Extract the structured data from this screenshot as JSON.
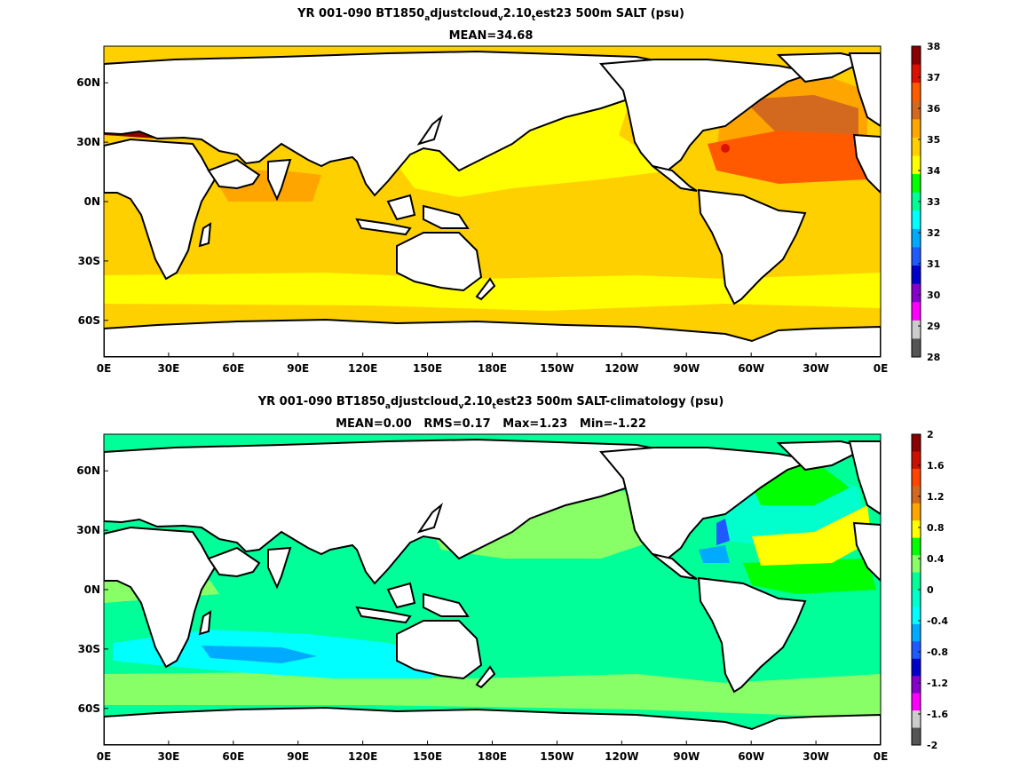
{
  "panels": [
    {
      "title_pre": "YR 001-090 BT1850",
      "title_sub1": "a",
      "title_mid1": "djustcloud",
      "title_sub2": "v",
      "title_mid2": "2.10",
      "title_sub3": "t",
      "title_post": "est23 500m SALT (psu)",
      "stats": "MEAN=34.68",
      "lon_ticks": [
        "0E",
        "30E",
        "60E",
        "90E",
        "120E",
        "150E",
        "180E",
        "150W",
        "120W",
        "90W",
        "60W",
        "30W",
        "0E"
      ],
      "lat_ticks": [
        "60N",
        "30N",
        "0N",
        "30S",
        "60S"
      ],
      "colorbar": {
        "labels": [
          "38",
          "37",
          "36",
          "35",
          "34",
          "33",
          "32",
          "31",
          "30",
          "29",
          "28"
        ],
        "colors": [
          "#8b0000",
          "#dd1100",
          "#ff5a00",
          "#d2691e",
          "#ffa500",
          "#ffd000",
          "#ffff00",
          "#00ff00",
          "#00ff99",
          "#00ffff",
          "#00aaff",
          "#1e5aff",
          "#0000cc",
          "#8800cc",
          "#ff00ff",
          "#cccccc",
          "#555555"
        ]
      },
      "colors": {
        "white": "#ffffff",
        "yellow": "#ffff00",
        "gold": "#ffd000",
        "orange": "#ffa500",
        "rust": "#d2691e",
        "redorange": "#ff5a00",
        "red": "#dd1100",
        "maroon": "#8b0000",
        "green": "#00ff00"
      }
    },
    {
      "title_pre": "YR 001-090 BT1850",
      "title_sub1": "a",
      "title_mid1": "djustcloud",
      "title_sub2": "v",
      "title_mid2": "2.10",
      "title_sub3": "t",
      "title_post": "est23 500m SALT-climatology (psu)",
      "stats": "MEAN=0.00   RMS=0.17   Max=1.23   Min=-1.22",
      "lon_ticks": [
        "0E",
        "30E",
        "60E",
        "90E",
        "120E",
        "150E",
        "180E",
        "150W",
        "120W",
        "90W",
        "60W",
        "30W",
        "0E"
      ],
      "lat_ticks": [
        "60N",
        "30N",
        "0N",
        "30S",
        "60S"
      ],
      "colorbar": {
        "labels": [
          "2",
          "1.6",
          "1.2",
          "0.8",
          "0.4",
          "0",
          "-0.4",
          "-0.8",
          "-1.2",
          "-1.6",
          "-2"
        ],
        "colors": [
          "#8b0000",
          "#cc1100",
          "#ff4400",
          "#d2691e",
          "#ffa500",
          "#ffff00",
          "#00ff00",
          "#88ff66",
          "#00ff99",
          "#00ffcc",
          "#00ffff",
          "#00aaff",
          "#1e5aff",
          "#0000cc",
          "#8800cc",
          "#ff00ff",
          "#cccccc",
          "#555555"
        ]
      },
      "colors": {
        "white": "#ffffff",
        "lightgreen": "#88ff66",
        "seagreen": "#00ff99",
        "aqua": "#00ffcc",
        "cyan": "#00ffff",
        "skyblue": "#00aaff",
        "blue": "#1e5aff",
        "yellow": "#ffff00",
        "green": "#00ff00"
      }
    }
  ]
}
